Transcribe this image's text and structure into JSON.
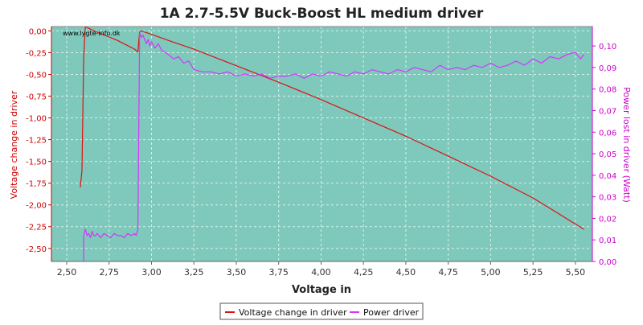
{
  "chart_data": {
    "type": "line",
    "title": "1A 2.7-5.5V Buck-Boost HL medium driver",
    "watermark": "www.lygte-info.dk",
    "xlabel": "Voltage in",
    "ylabel_left": "Voltage change in driver",
    "ylabel_right": "Power lost in driver (Watt)",
    "xlim": [
      2.41,
      5.6
    ],
    "ylim_left": [
      -2.65,
      0.05
    ],
    "ylim_right": [
      0.0,
      0.109
    ],
    "x_ticks": [
      "2,50",
      "2,75",
      "3,00",
      "3,25",
      "3,50",
      "3,75",
      "4,00",
      "4,25",
      "4,50",
      "4,75",
      "5,00",
      "5,25",
      "5,50"
    ],
    "x_tick_values": [
      2.5,
      2.75,
      3.0,
      3.25,
      3.5,
      3.75,
      4.0,
      4.25,
      4.5,
      4.75,
      5.0,
      5.25,
      5.5
    ],
    "y_left_ticks": [
      "0,00",
      "-0,25",
      "-0,50",
      "-0,75",
      "-1,00",
      "-1,25",
      "-1,50",
      "-1,75",
      "-2,00",
      "-2,25",
      "-2,50"
    ],
    "y_left_tick_values": [
      0,
      -0.25,
      -0.5,
      -0.75,
      -1.0,
      -1.25,
      -1.5,
      -1.75,
      -2.0,
      -2.25,
      -2.5
    ],
    "y_right_ticks": [
      "0,00",
      "0,01",
      "0,02",
      "0,03",
      "0,04",
      "0,05",
      "0,06",
      "0,07",
      "0,08",
      "0,09",
      "0,10"
    ],
    "y_right_tick_values": [
      0,
      0.01,
      0.02,
      0.03,
      0.04,
      0.05,
      0.06,
      0.07,
      0.08,
      0.09,
      0.1
    ],
    "grid": true,
    "legend_position": "bottom-center",
    "colors": {
      "plot_bg": "#7fc9bc",
      "grid": "#d8efe9",
      "voltage": "#dd1111",
      "power": "#d633ff",
      "left_axis": "#cc0000",
      "right_axis": "#cc00cc",
      "frame": "#888888"
    },
    "series": [
      {
        "name": "Voltage change in driver",
        "axis": "left",
        "x": [
          2.58,
          2.59,
          2.6,
          2.61,
          2.65,
          2.7,
          2.75,
          2.8,
          2.85,
          2.9,
          2.92,
          2.93,
          2.94,
          3.0,
          3.1,
          3.25,
          3.5,
          3.75,
          4.0,
          4.25,
          4.5,
          4.75,
          5.0,
          5.25,
          5.4,
          5.5,
          5.55
        ],
        "y": [
          -1.8,
          -1.6,
          -0.3,
          0.05,
          0.01,
          -0.03,
          -0.07,
          -0.11,
          -0.16,
          -0.21,
          -0.24,
          -0.01,
          0.0,
          -0.04,
          -0.11,
          -0.21,
          -0.4,
          -0.59,
          -0.79,
          -1.0,
          -1.21,
          -1.44,
          -1.67,
          -1.92,
          -2.1,
          -2.22,
          -2.28
        ]
      },
      {
        "name": "Power driver",
        "axis": "right",
        "x": [
          2.6,
          2.6,
          2.61,
          2.62,
          2.63,
          2.64,
          2.65,
          2.66,
          2.67,
          2.68,
          2.7,
          2.72,
          2.74,
          2.76,
          2.78,
          2.8,
          2.82,
          2.84,
          2.86,
          2.88,
          2.9,
          2.91,
          2.92,
          2.93,
          2.94,
          2.95,
          2.96,
          2.97,
          2.98,
          2.99,
          3.0,
          3.02,
          3.04,
          3.06,
          3.08,
          3.1,
          3.13,
          3.16,
          3.19,
          3.22,
          3.25,
          3.3,
          3.35,
          3.4,
          3.45,
          3.5,
          3.55,
          3.6,
          3.65,
          3.7,
          3.75,
          3.8,
          3.85,
          3.9,
          3.95,
          4.0,
          4.05,
          4.1,
          4.15,
          4.2,
          4.25,
          4.3,
          4.35,
          4.4,
          4.45,
          4.5,
          4.55,
          4.6,
          4.65,
          4.7,
          4.75,
          4.8,
          4.85,
          4.9,
          4.95,
          5.0,
          5.05,
          5.1,
          5.15,
          5.2,
          5.25,
          5.3,
          5.35,
          5.4,
          5.45,
          5.5,
          5.53,
          5.55
        ],
        "y": [
          0.0,
          0.012,
          0.015,
          0.012,
          0.013,
          0.011,
          0.014,
          0.012,
          0.012,
          0.013,
          0.011,
          0.013,
          0.012,
          0.011,
          0.013,
          0.012,
          0.012,
          0.011,
          0.013,
          0.012,
          0.013,
          0.012,
          0.015,
          0.106,
          0.104,
          0.105,
          0.103,
          0.101,
          0.103,
          0.1,
          0.102,
          0.099,
          0.101,
          0.098,
          0.097,
          0.096,
          0.094,
          0.095,
          0.092,
          0.093,
          0.089,
          0.088,
          0.088,
          0.087,
          0.088,
          0.086,
          0.087,
          0.086,
          0.087,
          0.085,
          0.086,
          0.086,
          0.087,
          0.085,
          0.087,
          0.086,
          0.088,
          0.087,
          0.086,
          0.088,
          0.087,
          0.089,
          0.088,
          0.087,
          0.089,
          0.088,
          0.09,
          0.089,
          0.088,
          0.091,
          0.089,
          0.09,
          0.089,
          0.091,
          0.09,
          0.092,
          0.09,
          0.091,
          0.093,
          0.091,
          0.094,
          0.092,
          0.095,
          0.094,
          0.096,
          0.097,
          0.094,
          0.096
        ]
      }
    ]
  }
}
